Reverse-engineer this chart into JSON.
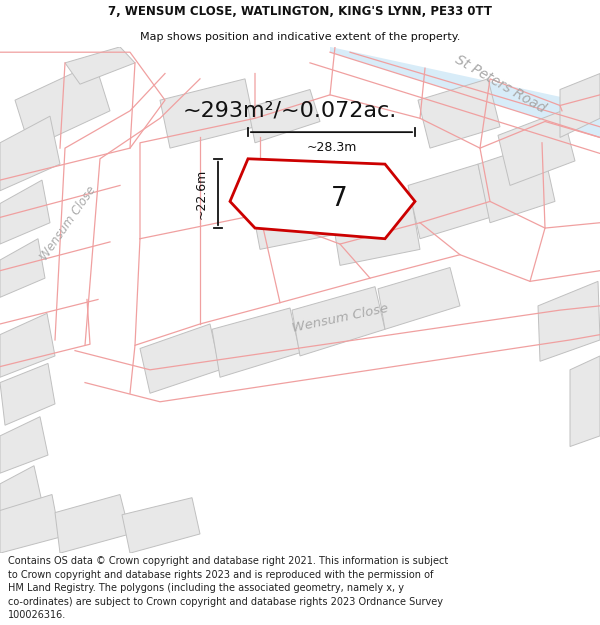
{
  "title_line1": "7, WENSUM CLOSE, WATLINGTON, KING'S LYNN, PE33 0TT",
  "title_line2": "Map shows position and indicative extent of the property.",
  "area_text": "~293m²/~0.072ac.",
  "plot_number": "7",
  "dim_horizontal": "~28.3m",
  "dim_vertical": "~22.6m",
  "road_label_st_peters": "St Peters Road",
  "road_label_wensum_bottom": "Wensum Close",
  "road_label_wensum_left": "Wensum Close",
  "footer_line1": "Contains OS data © Crown copyright and database right 2021. This information is subject",
  "footer_line2": "to Crown copyright and database rights 2023 and is reproduced with the permission of",
  "footer_line3": "HM Land Registry. The polygons (including the associated geometry, namely x, y",
  "footer_line4": "co-ordinates) are subject to Crown copyright and database rights 2023 Ordnance Survey",
  "footer_line5": "100026316.",
  "bg_white": "#ffffff",
  "map_bg": "#ffffff",
  "building_fill": "#e8e8e8",
  "building_edge": "#c0c0c0",
  "pink_line": "#f0a0a0",
  "red_plot": "#cc0000",
  "arrow_color": "#111111",
  "text_dark": "#111111",
  "text_gray": "#aaaaaa",
  "st_peters_road_fill": "#d0e8f8",
  "road_fill_light": "#f5f5f5"
}
